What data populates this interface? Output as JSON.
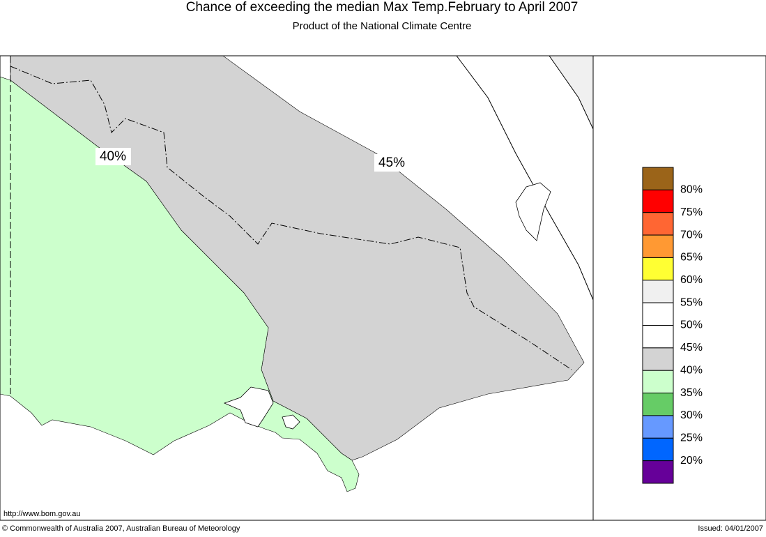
{
  "header": {
    "title": "Chance of exceeding the median Max Temp.February to April 2007",
    "subtitle": "Product of the National Climate Centre"
  },
  "map": {
    "contour_labels": [
      "40%",
      "45%"
    ],
    "url": "http://www.bom.gov.au"
  },
  "legend": {
    "colors": [
      "#9b6419",
      "#ff0000",
      "#ff6633",
      "#ff9933",
      "#ffff33",
      "#f0f0f0",
      "#ffffff",
      "#ffffff",
      "#d3d3d3",
      "#ccffcc",
      "#66cc66",
      "#6699ff",
      "#0066ff",
      "#660099"
    ],
    "labels": [
      "80%",
      "75%",
      "70%",
      "65%",
      "60%",
      "55%",
      "50%",
      "45%",
      "40%",
      "35%",
      "30%",
      "25%",
      "20%"
    ]
  },
  "footer": {
    "copyright": "© Commonwealth of Australia 2007, Australian Bureau of Meteorology",
    "issued": "Issued: 04/01/2007"
  }
}
